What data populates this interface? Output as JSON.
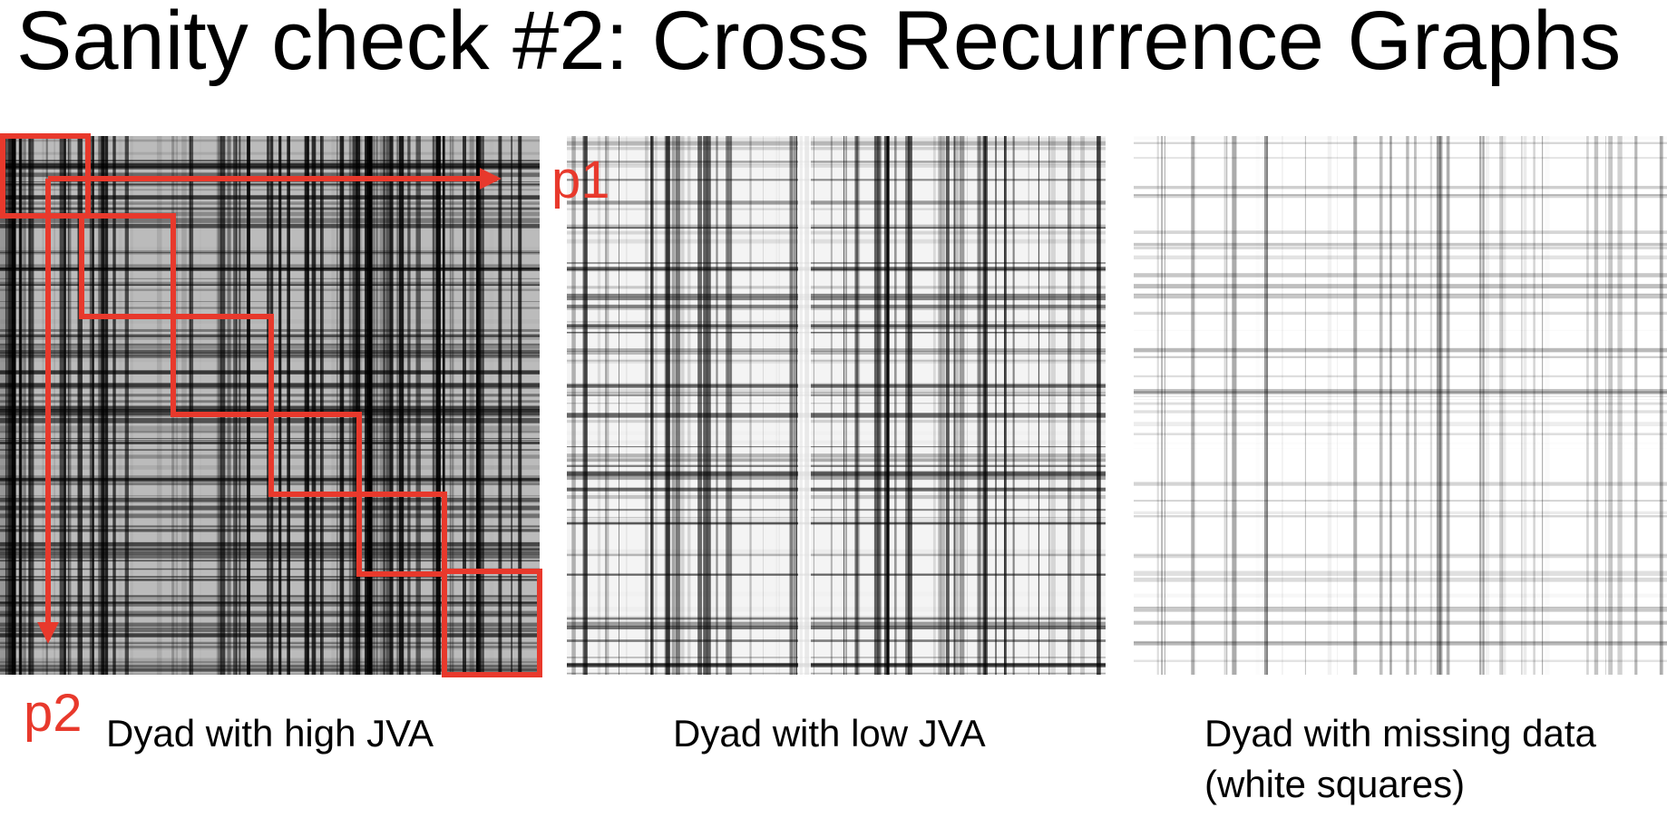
{
  "title": "Sanity check #2: Cross Recurrence Graphs",
  "annotations": {
    "p1": "p1",
    "p2": "p2"
  },
  "panels": [
    {
      "caption": [
        "Dyad with high JVA"
      ]
    },
    {
      "caption": [
        "Dyad with low JVA"
      ]
    },
    {
      "caption": [
        "Dyad with missing data",
        "(white squares)"
      ]
    }
  ]
}
